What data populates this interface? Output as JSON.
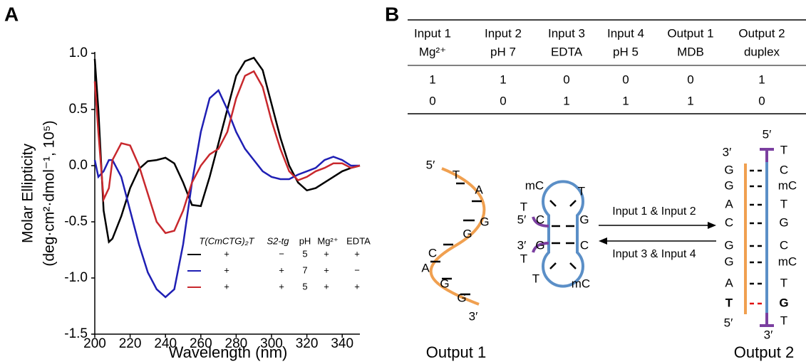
{
  "panel_labels": [
    "A",
    "B"
  ],
  "chart_data": {
    "type": "line",
    "xlabel": "Wavelength (nm)",
    "ylabel": [
      "Molar Ellipticity",
      "(deg·cm²·dmol⁻¹, 10⁵)"
    ],
    "x": [
      200,
      202,
      205,
      208,
      210,
      215,
      220,
      225,
      230,
      235,
      240,
      245,
      250,
      255,
      260,
      265,
      270,
      275,
      280,
      285,
      290,
      295,
      300,
      305,
      310,
      315,
      320,
      325,
      330,
      335,
      340,
      345,
      350
    ],
    "series": [
      {
        "color": "#000000",
        "values": [
          0.95,
          0.5,
          -0.4,
          -0.68,
          -0.65,
          -0.45,
          -0.2,
          -0.03,
          0.04,
          0.05,
          0.07,
          0.02,
          -0.15,
          -0.35,
          -0.36,
          -0.1,
          0.2,
          0.5,
          0.8,
          0.93,
          0.96,
          0.85,
          0.55,
          0.25,
          0.0,
          -0.15,
          -0.22,
          -0.2,
          -0.15,
          -0.1,
          -0.05,
          -0.02,
          0.0
        ]
      },
      {
        "color": "#1f1fb4",
        "values": [
          0.05,
          -0.1,
          -0.05,
          0.05,
          0.05,
          -0.1,
          -0.4,
          -0.7,
          -0.95,
          -1.1,
          -1.17,
          -1.1,
          -0.7,
          -0.15,
          0.3,
          0.6,
          0.67,
          0.5,
          0.3,
          0.15,
          0.05,
          -0.05,
          -0.1,
          -0.12,
          -0.12,
          -0.08,
          -0.05,
          -0.02,
          0.05,
          0.08,
          0.05,
          0.0,
          0.0
        ]
      },
      {
        "color": "#c8282d",
        "values": [
          0.75,
          0.3,
          -0.3,
          -0.2,
          0.05,
          0.2,
          0.18,
          0.0,
          -0.25,
          -0.5,
          -0.6,
          -0.58,
          -0.4,
          -0.15,
          0.0,
          0.1,
          0.15,
          0.3,
          0.6,
          0.8,
          0.84,
          0.7,
          0.4,
          0.15,
          -0.05,
          -0.13,
          -0.1,
          -0.05,
          -0.02,
          0.02,
          0.02,
          -0.02,
          0.0
        ]
      }
    ],
    "xlim": [
      200,
      350
    ],
    "xticks": [
      200,
      220,
      240,
      260,
      280,
      300,
      320,
      340
    ],
    "ylim": [
      -1.5,
      1.0
    ],
    "yticks": [
      -1.5,
      {
        "value": -1,
        "label": "-1.0"
      },
      -0.5,
      {
        "value": 0,
        "label": "0.0"
      },
      0.5,
      {
        "value": 1,
        "label": "1.0"
      }
    ],
    "legend_table": {
      "headers": [
        "T(CmCTG)₂T",
        "S2-tg",
        "pH",
        "Mg²⁺",
        "EDTA"
      ],
      "rows": [
        [
          "+",
          "−",
          "5",
          "+",
          "+"
        ],
        [
          "+",
          "+",
          "7",
          "+",
          "−"
        ],
        [
          "+",
          "+",
          "5",
          "+",
          "+"
        ]
      ]
    }
  },
  "table": {
    "header": [
      [
        "Input 1",
        "Input 2",
        "Input 3",
        "Input 4",
        "Output 1",
        "Output 2"
      ],
      [
        "Mg²⁺",
        "pH 7",
        "EDTA",
        "pH 5",
        "MDB",
        "duplex"
      ]
    ],
    "rows": [
      [
        1,
        1,
        0,
        0,
        0,
        1
      ],
      [
        0,
        0,
        1,
        1,
        1,
        0
      ]
    ]
  },
  "diagram": {
    "output1": {
      "caption": "Output 1",
      "strand": [
        "5′",
        "T",
        "A",
        "G",
        "G",
        "C",
        "A",
        "G",
        "G",
        "3′"
      ]
    },
    "hairpin": {
      "labels": [
        "mC",
        "T",
        "T",
        "5′",
        "C",
        "G",
        "3′",
        "G",
        "C",
        "T",
        "T",
        "mC"
      ]
    },
    "arrows": {
      "forward": "Input 1 & Input 2",
      "reverse": "Input 3 & Input 4"
    },
    "output2": {
      "caption": "Output 2",
      "left": [
        "3′",
        "G",
        "G",
        "A",
        "C",
        "G",
        "G",
        "A",
        "T",
        "5′"
      ],
      "right": [
        "5′",
        "T",
        "C",
        "mC",
        "T",
        "G",
        "C",
        "mC",
        "T",
        "G",
        "T",
        "3′"
      ]
    }
  }
}
